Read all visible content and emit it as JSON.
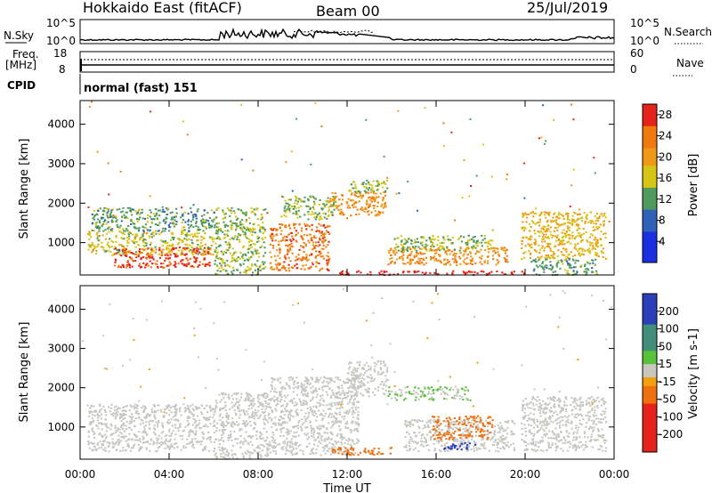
{
  "header": {
    "radar": "Hokkaido East (fitACF)",
    "beam": "Beam 00",
    "date": "25/Jul/2019"
  },
  "noise_panel": {
    "left_label": "N.Sky",
    "right_label": "N.Search",
    "left_ticks": [
      "10^5",
      "10^0"
    ],
    "right_ticks": [
      "10^5",
      "10^0"
    ]
  },
  "freq_panel": {
    "left_label_1": "Freq.",
    "left_label_2": "[MHz]",
    "right_label": "Nave",
    "left_ticks": [
      "18",
      "8"
    ],
    "right_ticks": [
      "60",
      "0"
    ]
  },
  "cpid": {
    "label": "CPID",
    "value": "normal (fast) 151"
  },
  "colors": {
    "velocity_blue": "#2a3fb8",
    "velocity_green": "#58c33a",
    "velocity_grey": "#c7c7c0",
    "velocity_orange": "#f0a010",
    "power_red": "#e6231a",
    "power_orange": "#f07a10",
    "power_yellow": "#d8c415",
    "power_green": "#4f9a5d",
    "power_blue": "#1a2fe0"
  },
  "chart_data": [
    {
      "type": "heatmap",
      "panel": "power",
      "ylabel": "Slant Range [km]",
      "yticks": [
        "1000",
        "2000",
        "3000",
        "4000"
      ],
      "xticks": [
        "00:00",
        "04:00",
        "08:00",
        "12:00",
        "16:00",
        "20:00",
        "00:00"
      ],
      "xlim_hours": [
        0,
        24
      ],
      "ylim_km": [
        180,
        4600
      ],
      "colorbar": {
        "label": "Power [dB]",
        "ticks": [
          "4",
          "8",
          "12",
          "16",
          "20",
          "24",
          "28"
        ],
        "range": [
          0,
          30
        ]
      },
      "regions": [
        {
          "t0": 0.3,
          "t1": 6.0,
          "r0": 700,
          "r1": 1300,
          "value": 16
        },
        {
          "t0": 1.5,
          "t1": 5.8,
          "r0": 380,
          "r1": 900,
          "value": 27
        },
        {
          "t0": 0.5,
          "t1": 6.0,
          "r0": 1300,
          "r1": 1900,
          "value": 12
        },
        {
          "t0": 6.0,
          "t1": 8.3,
          "r0": 200,
          "r1": 1900,
          "value": 14
        },
        {
          "t0": 8.5,
          "t1": 11.2,
          "r0": 300,
          "r1": 1500,
          "value": 24
        },
        {
          "t0": 9.0,
          "t1": 11.5,
          "r0": 1600,
          "r1": 2200,
          "value": 14
        },
        {
          "t0": 11.2,
          "t1": 13.7,
          "r0": 1700,
          "r1": 2300,
          "value": 22
        },
        {
          "t0": 12.0,
          "t1": 13.8,
          "r0": 2300,
          "r1": 2600,
          "value": 14
        },
        {
          "t0": 11.5,
          "t1": 20.0,
          "r0": 200,
          "r1": 300,
          "value": 29
        },
        {
          "t0": 13.8,
          "t1": 19.2,
          "r0": 450,
          "r1": 900,
          "value": 22
        },
        {
          "t0": 14.0,
          "t1": 18.5,
          "r0": 800,
          "r1": 1200,
          "value": 14
        },
        {
          "t0": 19.8,
          "t1": 23.6,
          "r0": 600,
          "r1": 1800,
          "value": 18
        },
        {
          "t0": 20.2,
          "t1": 23.2,
          "r0": 200,
          "r1": 600,
          "value": 12
        }
      ]
    },
    {
      "type": "heatmap",
      "panel": "velocity",
      "ylabel": "Slant Range [km]",
      "yticks": [
        "1000",
        "2000",
        "3000",
        "4000"
      ],
      "xticks": [
        "00:00",
        "04:00",
        "08:00",
        "12:00",
        "16:00",
        "20:00",
        "00:00"
      ],
      "xlabel": "Time UT",
      "xlim_hours": [
        0,
        24
      ],
      "ylim_km": [
        180,
        4600
      ],
      "colorbar": {
        "label": "Velocity [m s-1]",
        "ticks": [
          "200",
          "100",
          "50",
          "15",
          "-15",
          "-50",
          "-100",
          "-200"
        ],
        "range": [
          -250,
          250
        ]
      },
      "regions": [
        {
          "t0": 0.3,
          "t1": 6.0,
          "r0": 400,
          "r1": 1600,
          "value": 0
        },
        {
          "t0": 6.0,
          "t1": 8.5,
          "r0": 200,
          "r1": 1900,
          "value": 0
        },
        {
          "t0": 8.5,
          "t1": 12.5,
          "r0": 300,
          "r1": 2300,
          "value": 0
        },
        {
          "t0": 12.0,
          "t1": 13.8,
          "r0": 1800,
          "r1": 2700,
          "value": 0
        },
        {
          "t0": 11.3,
          "t1": 14.0,
          "r0": 300,
          "r1": 500,
          "value": -60
        },
        {
          "t0": 13.8,
          "t1": 17.5,
          "r0": 1700,
          "r1": 2050,
          "value": 30
        },
        {
          "t0": 14.5,
          "t1": 19.5,
          "r0": 400,
          "r1": 1200,
          "value": 10
        },
        {
          "t0": 15.8,
          "t1": 18.5,
          "r0": 700,
          "r1": 1300,
          "value": -70
        },
        {
          "t0": 16.3,
          "t1": 17.8,
          "r0": 450,
          "r1": 620,
          "value": 220
        },
        {
          "t0": 19.8,
          "t1": 23.6,
          "r0": 400,
          "r1": 1800,
          "value": 0
        }
      ]
    }
  ]
}
